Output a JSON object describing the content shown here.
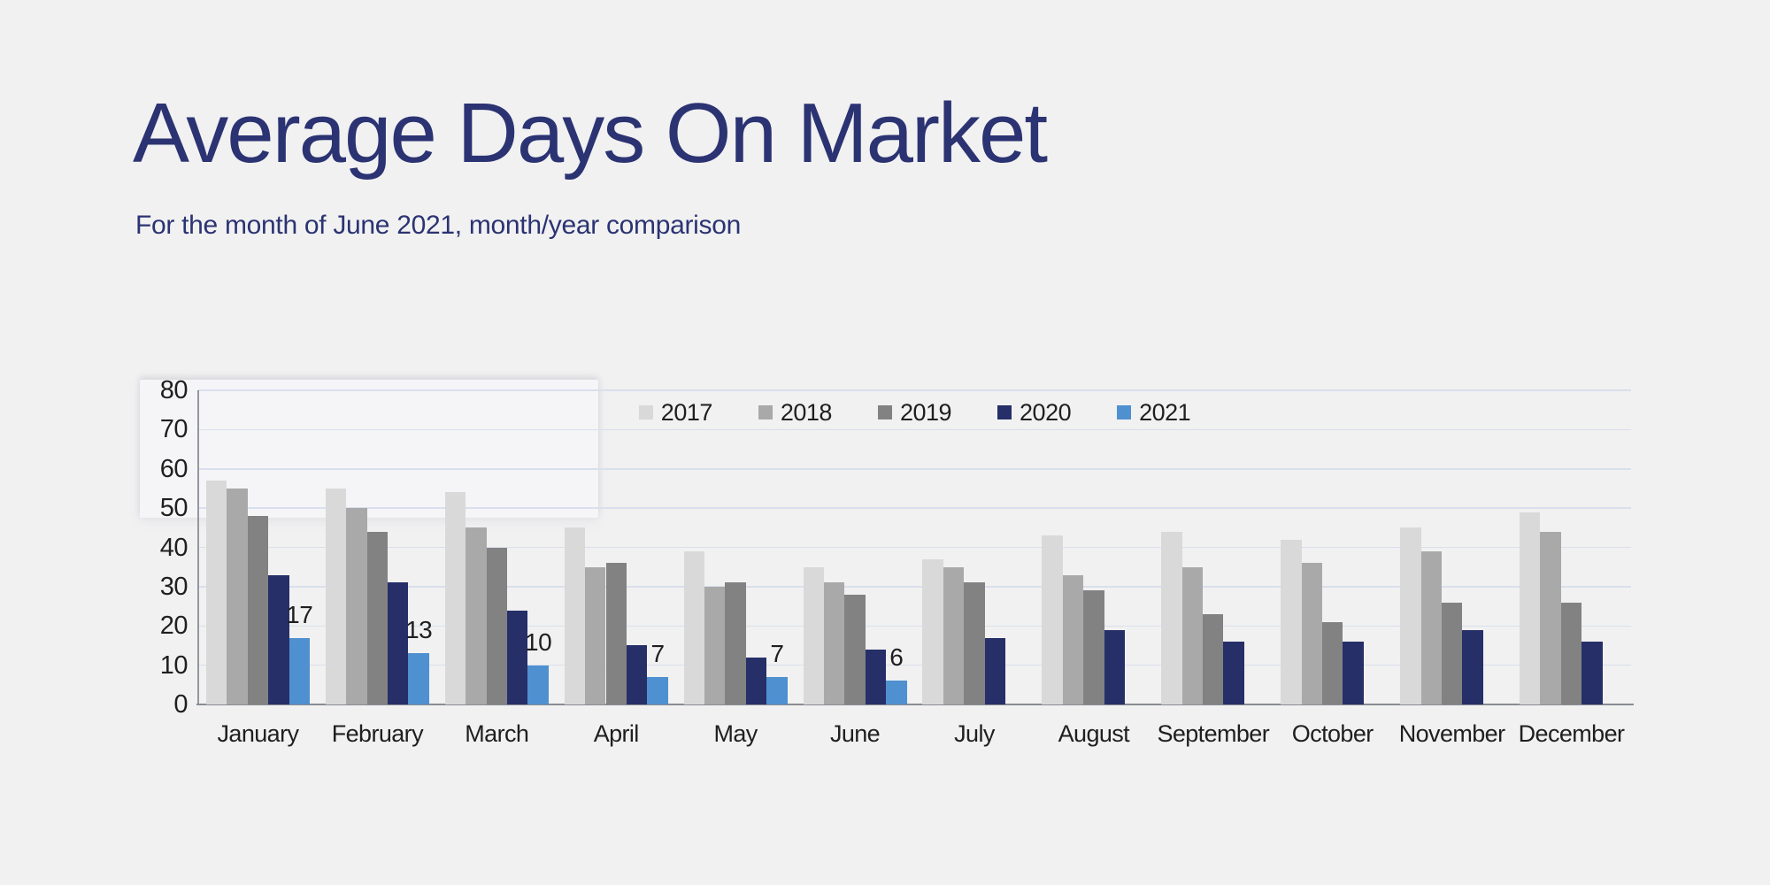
{
  "colors": {
    "background": "#f1f1f2",
    "title": "#2b3372",
    "text": "#1f1f1f",
    "gridline": "#d9dfec",
    "axis": "#8e9095"
  },
  "chart_data": {
    "type": "bar",
    "title": "Average Days On Market",
    "subtitle": "For the month of June 2021, month/year comparison",
    "categories": [
      "January",
      "February",
      "March",
      "April",
      "May",
      "June",
      "July",
      "August",
      "September",
      "October",
      "November",
      "December"
    ],
    "series": [
      {
        "name": "2017",
        "color": "#d9d9d9",
        "values": [
          57,
          55,
          54,
          45,
          39,
          35,
          37,
          43,
          44,
          42,
          45,
          49
        ]
      },
      {
        "name": "2018",
        "color": "#a9a9a9",
        "values": [
          55,
          50,
          45,
          35,
          30,
          31,
          35,
          33,
          35,
          36,
          39,
          44
        ]
      },
      {
        "name": "2019",
        "color": "#828282",
        "values": [
          48,
          44,
          40,
          36,
          31,
          28,
          31,
          29,
          23,
          21,
          26,
          26
        ]
      },
      {
        "name": "2020",
        "color": "#272f68",
        "values": [
          33,
          31,
          24,
          15,
          12,
          14,
          17,
          19,
          16,
          16,
          19,
          16
        ]
      },
      {
        "name": "2021",
        "color": "#4f90d0",
        "values": [
          17,
          13,
          10,
          7,
          7,
          6,
          null,
          null,
          null,
          null,
          null,
          null
        ],
        "data_labels": true
      }
    ],
    "xlabel": "",
    "ylabel": "",
    "ylim": [
      0,
      80
    ],
    "ytick_step": 10,
    "grid": "horizontal",
    "legend_position": "top-center"
  }
}
